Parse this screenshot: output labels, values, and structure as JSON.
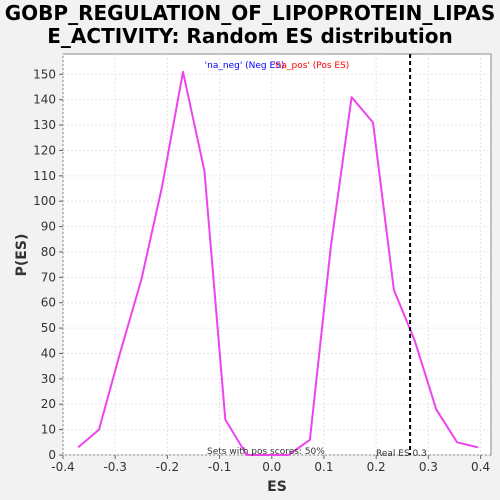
{
  "chart_data": {
    "type": "line",
    "title_lines": [
      "GOBP_REGULATION_OF_LIPOPROTEIN_LIPAS",
      "E_ACTIVITY: Random ES distribution"
    ],
    "xlabel": "ES",
    "ylabel": "P(ES)",
    "xlim": [
      -0.4,
      0.42
    ],
    "ylim": [
      0,
      158
    ],
    "x_ticks": [
      -0.4,
      -0.3,
      -0.2,
      -0.1,
      0.0,
      0.1,
      0.2,
      0.3,
      0.4
    ],
    "x_tick_labels": [
      "-0.4",
      "-0.3",
      "-0.2",
      "-0.1",
      "0.0",
      "0.1",
      "0.2",
      "0.3",
      "0.4"
    ],
    "y_ticks": [
      0,
      10,
      20,
      30,
      40,
      50,
      60,
      70,
      80,
      90,
      100,
      110,
      120,
      130,
      140,
      150
    ],
    "y_tick_labels": [
      "0",
      "10",
      "20",
      "30",
      "40",
      "50",
      "60",
      "70",
      "80",
      "90",
      "100",
      "110",
      "120",
      "130",
      "140",
      "150"
    ],
    "grid": true,
    "legend": {
      "placement": "top-center",
      "neg_label": "'na_neg' (Neg ES)",
      "pos_label": "'na_pos' (Pos ES)",
      "neg_color": "#0000ff",
      "pos_color": "#ff0000"
    },
    "series": [
      {
        "color": "#ee44ee",
        "x": [
          -0.371,
          -0.331,
          -0.291,
          -0.25,
          -0.21,
          -0.17,
          -0.129,
          -0.089,
          -0.048,
          -0.008,
          0.032,
          0.073,
          0.113,
          0.153,
          0.194,
          0.234,
          0.274,
          0.315,
          0.355,
          0.395
        ],
        "y": [
          3,
          10,
          40,
          69,
          106,
          151,
          112,
          14,
          0,
          0,
          0,
          6,
          82,
          141,
          131,
          65,
          45,
          18,
          5,
          3
        ]
      }
    ],
    "real_es": {
      "x": 0.265,
      "label": "Real ES 0.3",
      "color": "#000000"
    },
    "annotations": {
      "sets_with_pos": "Sets with pos scores: 50%"
    }
  }
}
